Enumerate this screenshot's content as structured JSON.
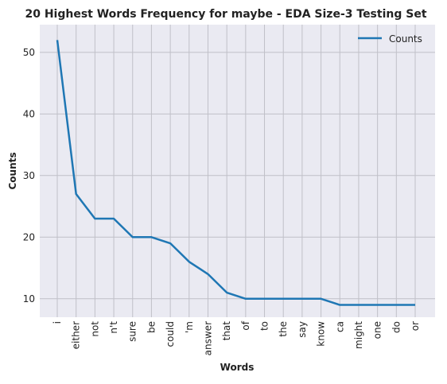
{
  "chart_data": {
    "type": "line",
    "title": "20 Highest Words Frequency for maybe - EDA Size-3 Testing Set",
    "xlabel": "Words",
    "ylabel": "Counts",
    "categories": [
      "i",
      "either",
      "not",
      "n't",
      "sure",
      "be",
      "could",
      "'m",
      "answer",
      "that",
      "of",
      "to",
      "the",
      "say",
      "know",
      "ca",
      "might",
      "one",
      "do",
      "or"
    ],
    "series": [
      {
        "name": "Counts",
        "values": [
          52,
          27,
          23,
          23,
          20,
          20,
          19,
          16,
          14,
          11,
          10,
          10,
          10,
          10,
          10,
          9,
          9,
          9,
          9,
          9
        ]
      }
    ],
    "yticks": [
      10,
      20,
      30,
      40,
      50
    ],
    "ylim": [
      7,
      54.5
    ],
    "grid": true,
    "legend_position": "top-right",
    "colors": {
      "line": "#1f77b4",
      "plot_bg": "#eaeaf2",
      "grid": "#c0c0c8"
    }
  }
}
